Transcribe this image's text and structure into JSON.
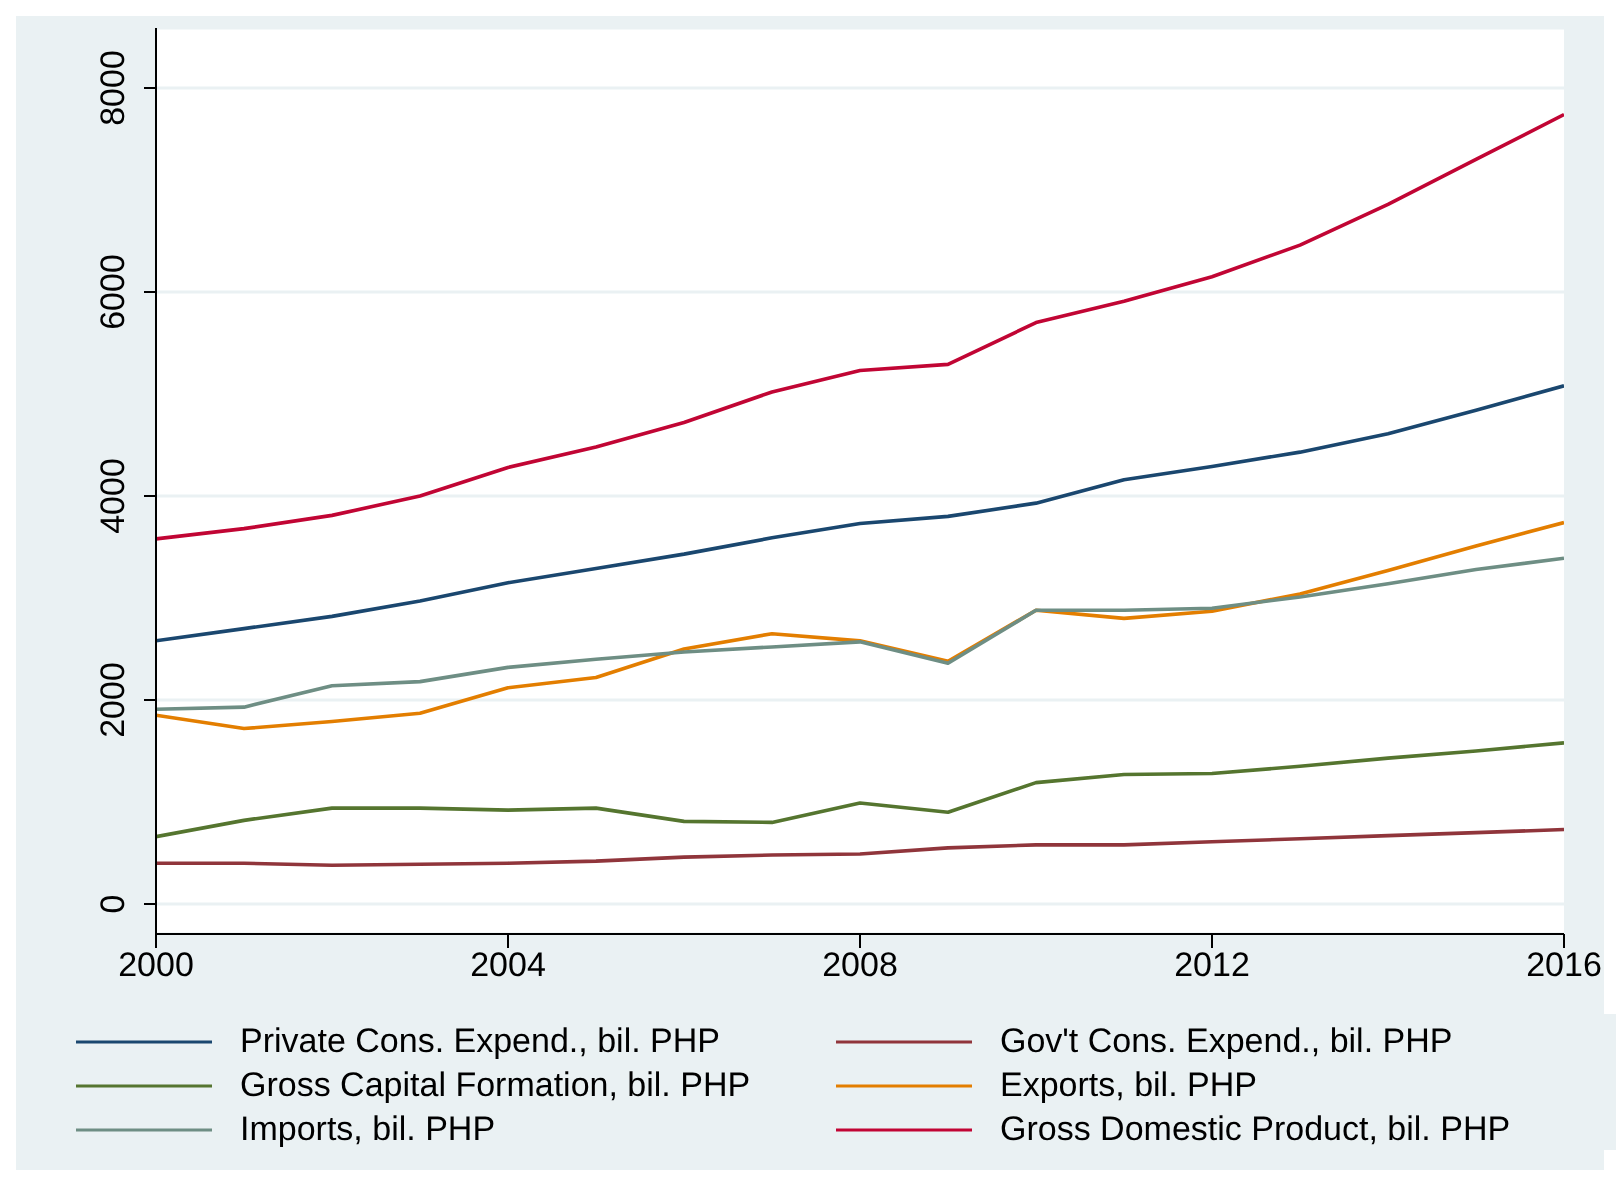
{
  "chart_data": {
    "type": "line",
    "x": [
      2000,
      2001,
      2002,
      2003,
      2004,
      2005,
      2006,
      2007,
      2008,
      2009,
      2010,
      2011,
      2012,
      2013,
      2014,
      2015,
      2016
    ],
    "xlim": [
      2000,
      2016
    ],
    "xticks": [
      2000,
      2004,
      2008,
      2012,
      2016
    ],
    "ylim": [
      0,
      8000
    ],
    "yticks": [
      0,
      2000,
      4000,
      6000,
      8000
    ],
    "grid": "y",
    "legend": "bottom",
    "marker": "none",
    "line_style": "solid",
    "series": [
      {
        "name": "Private Cons. Expend., bil. PHP",
        "color": "#1a476f",
        "values": [
          2580,
          2700,
          2820,
          2970,
          3150,
          3290,
          3430,
          3590,
          3730,
          3800,
          3930,
          4160,
          4290,
          4430,
          4610,
          4840,
          5080
        ]
      },
      {
        "name": "Gov't Cons. Expend., bil. PHP",
        "color": "#90353b",
        "values": [
          400,
          400,
          380,
          390,
          400,
          420,
          460,
          480,
          490,
          550,
          580,
          580,
          610,
          640,
          670,
          700,
          730
        ]
      },
      {
        "name": "Gross Capital Formation, bil. PHP",
        "color": "#55752f",
        "values": [
          660,
          820,
          940,
          940,
          920,
          940,
          810,
          800,
          990,
          900,
          1190,
          1270,
          1280,
          1350,
          1430,
          1500,
          1580
        ]
      },
      {
        "name": "Exports, bil. PHP",
        "color": "#e37e00",
        "values": [
          1850,
          1720,
          1790,
          1870,
          2120,
          2220,
          2500,
          2650,
          2580,
          2380,
          2880,
          2800,
          2870,
          3040,
          3270,
          3510,
          3740
        ]
      },
      {
        "name": "Imports, bil. PHP",
        "color": "#6e8e84",
        "values": [
          1910,
          1930,
          2140,
          2180,
          2320,
          2400,
          2470,
          2520,
          2570,
          2360,
          2880,
          2880,
          2900,
          3010,
          3140,
          3280,
          3390
        ]
      },
      {
        "name": "Gross Domestic Product, bil. PHP",
        "color": "#c10534",
        "values": [
          3580,
          3680,
          3810,
          4000,
          4280,
          4480,
          4720,
          5020,
          5230,
          5290,
          5700,
          5910,
          6150,
          6460,
          6860,
          7300,
          7740
        ]
      }
    ]
  }
}
